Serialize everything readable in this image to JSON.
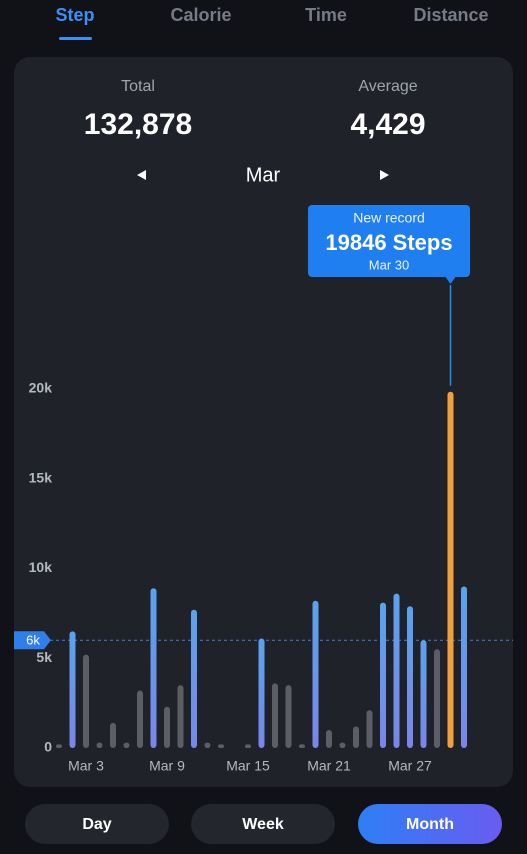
{
  "tabs": [
    "Step",
    "Calorie",
    "Time",
    "Distance"
  ],
  "summary": {
    "total_label": "Total",
    "total": "132,878",
    "average_label": "Average",
    "average": "4,429"
  },
  "month": "Mar",
  "chart_data": {
    "type": "bar",
    "categories": [
      null,
      null,
      "Mar 3",
      null,
      null,
      null,
      null,
      null,
      "Mar 9",
      null,
      null,
      null,
      null,
      null,
      "Mar 15",
      null,
      null,
      null,
      null,
      null,
      "Mar 21",
      null,
      null,
      null,
      null,
      null,
      "Mar 27",
      null,
      null,
      null,
      null
    ],
    "values": [
      200,
      6500,
      5200,
      300,
      1400,
      300,
      3200,
      8900,
      2300,
      3500,
      7700,
      300,
      200,
      0,
      200,
      6100,
      3600,
      3500,
      200,
      8200,
      1000,
      300,
      1200,
      2100,
      8100,
      8600,
      7900,
      6000,
      5500,
      19846,
      9000
    ],
    "ylim": [
      0,
      20000
    ],
    "yticks": [
      0,
      {
        "value": 5000,
        "label": "5k"
      },
      {
        "value": 10000,
        "label": "10k"
      },
      {
        "value": 15000,
        "label": "15k"
      },
      {
        "value": 20000,
        "label": "20k"
      }
    ],
    "goal": {
      "value": 6000,
      "label": "6k"
    },
    "colors": {
      "above_goal": "#4f97e6",
      "below_goal": "#5b5e66",
      "record": "#f0a13c"
    },
    "record": {
      "label": "New record",
      "value": 19846,
      "value_label": "19846 Steps",
      "date": "Mar 30"
    }
  },
  "buttons": [
    "Day",
    "Week",
    "Month"
  ]
}
